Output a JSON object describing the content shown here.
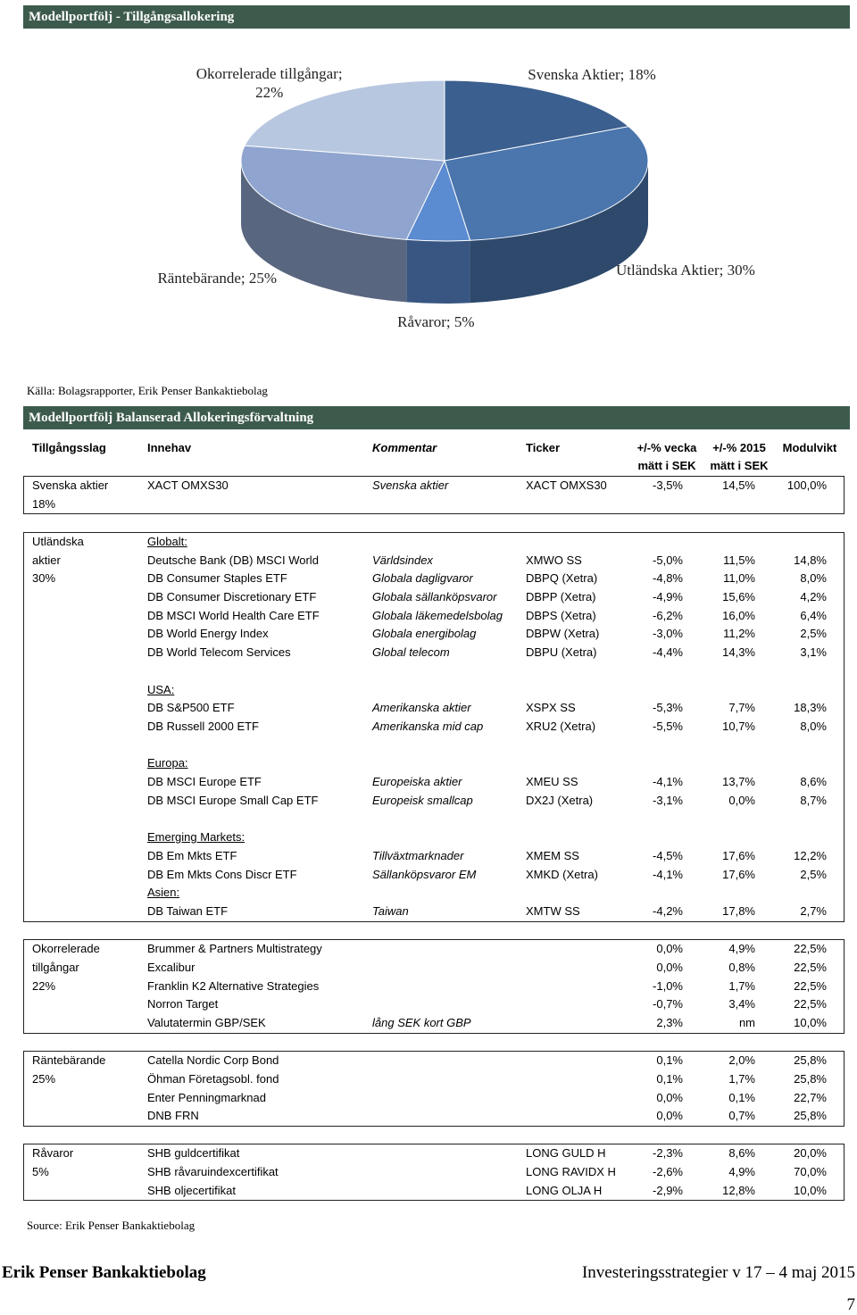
{
  "title": "Modellportfölj - Tillgångsallokering",
  "chart_data": {
    "type": "pie",
    "values": [
      18,
      30,
      5,
      25,
      22
    ],
    "value_labels": [
      "Svenska Aktier; 18%",
      "Utländska Aktier; 30%",
      "Råvaror; 5%",
      "Räntebärande; 25%",
      "Okorrelerade tillgångar; 22%"
    ],
    "colors": [
      "#3b5f8f",
      "#4a75ad",
      "#5b8bd0",
      "#8fa5cf",
      "#b8c7e0"
    ]
  },
  "chart_source": "Källa: Bolagsrapporter, Erik Penser Bankaktiebolag",
  "table_title": "Modellportfölj Balanserad Allokeringsförvaltning",
  "table": {
    "header": [
      "Tillgångsslag",
      "Innehav",
      "Kommentar",
      "Ticker",
      [
        "+/-% vecka",
        "mätt i SEK"
      ],
      [
        "+/-% 2015",
        "mätt i SEK"
      ],
      "Modulvikt"
    ],
    "groups": [
      {
        "rows": [
          [
            "Svenska aktier",
            "XACT OMXS30",
            "Svenska aktier",
            "XACT OMXS30",
            "-3,5%",
            "14,5%",
            "100,0%"
          ],
          [
            "18%",
            null,
            null,
            null,
            null,
            null,
            null
          ]
        ]
      },
      {
        "rows": [
          [
            "Utländska",
            "Globalt:",
            null,
            null,
            null,
            null,
            null
          ],
          [
            "aktier",
            "Deutsche Bank (DB) MSCI World",
            "Världsindex",
            "XMWO SS",
            "-5,0%",
            "11,5%",
            "14,8%"
          ],
          [
            "30%",
            "DB Consumer Staples ETF",
            "Globala dagligvaror",
            "DBPQ (Xetra)",
            "-4,8%",
            "11,0%",
            "8,0%"
          ],
          [
            null,
            "DB Consumer Discretionary ETF",
            "Globala sällanköpsvaror",
            "DBPP (Xetra)",
            "-4,9%",
            "15,6%",
            "4,2%"
          ],
          [
            null,
            "DB MSCI World Health Care ETF",
            "Globala läkemedelsbolag",
            "DBPS (Xetra)",
            "-6,2%",
            "16,0%",
            "6,4%"
          ],
          [
            null,
            "DB World Energy Index",
            "Globala energibolag",
            "DBPW (Xetra)",
            "-3,0%",
            "11,2%",
            "2,5%"
          ],
          [
            null,
            "DB World Telecom Services",
            "Global telecom",
            "DBPU (Xetra)",
            "-4,4%",
            "14,3%",
            "3,1%"
          ],
          null,
          [
            null,
            "USA:",
            null,
            null,
            null,
            null,
            null
          ],
          [
            null,
            "DB S&P500 ETF",
            "Amerikanska aktier",
            "XSPX SS",
            "-5,3%",
            "7,7%",
            "18,3%"
          ],
          [
            null,
            "DB Russell 2000 ETF",
            "Amerikanska mid cap",
            "XRU2 (Xetra)",
            "-5,5%",
            "10,7%",
            "8,0%"
          ],
          null,
          [
            null,
            "Europa:",
            null,
            null,
            null,
            null,
            null
          ],
          [
            null,
            "DB MSCI Europe ETF",
            "Europeiska aktier",
            "XMEU SS",
            "-4,1%",
            "13,7%",
            "8,6%"
          ],
          [
            null,
            "DB MSCI Europe Small Cap ETF",
            "Europeisk smallcap",
            "DX2J (Xetra)",
            "-3,1%",
            "0,0%",
            "8,7%"
          ],
          null,
          [
            null,
            "Emerging Markets:",
            null,
            null,
            null,
            null,
            null
          ],
          [
            null,
            "DB Em Mkts ETF",
            "Tillväxtmarknader",
            "XMEM SS",
            "-4,5%",
            "17,6%",
            "12,2%"
          ],
          [
            null,
            "DB Em Mkts Cons Discr ETF",
            "Sällanköpsvaror EM",
            "XMKD (Xetra)",
            "-4,1%",
            "17,6%",
            "2,5%"
          ],
          [
            null,
            "Asien:",
            null,
            null,
            null,
            null,
            null
          ],
          [
            null,
            "DB Taiwan ETF",
            "Taiwan",
            "XMTW SS",
            "-4,2%",
            "17,8%",
            "2,7%"
          ]
        ]
      },
      {
        "rows": [
          [
            "Okorrelerade",
            "Brummer & Partners Multistrategy",
            null,
            null,
            "0,0%",
            "4,9%",
            "22,5%"
          ],
          [
            "tillgångar",
            "Excalibur",
            null,
            null,
            "0,0%",
            "0,8%",
            "22,5%"
          ],
          [
            "22%",
            "Franklin K2 Alternative Strategies",
            null,
            null,
            "-1,0%",
            "1,7%",
            "22,5%"
          ],
          [
            null,
            "Norron Target",
            null,
            null,
            "-0,7%",
            "3,4%",
            "22,5%"
          ],
          [
            null,
            "Valutatermin GBP/SEK",
            "lång SEK kort GBP",
            null,
            "2,3%",
            "nm",
            "10,0%"
          ]
        ]
      },
      {
        "rows": [
          [
            "Räntebärande",
            "Catella Nordic Corp Bond",
            null,
            null,
            "0,1%",
            "2,0%",
            "25,8%"
          ],
          [
            "25%",
            "Öhman Företagsobl. fond",
            null,
            null,
            "0,1%",
            "1,7%",
            "25,8%"
          ],
          [
            null,
            "Enter Penningmarknad",
            null,
            null,
            "0,0%",
            "0,1%",
            "22,7%"
          ],
          [
            null,
            "DNB FRN",
            null,
            null,
            "0,0%",
            "0,7%",
            "25,8%"
          ]
        ]
      },
      {
        "rows": [
          [
            "Råvaror",
            "SHB guldcertifikat",
            null,
            "LONG GULD H",
            "-2,3%",
            "8,6%",
            "20,0%"
          ],
          [
            "5%",
            "SHB råvaruindexcertifikat",
            null,
            "LONG RAVIDX H",
            "-2,6%",
            "4,9%",
            "70,0%"
          ],
          [
            null,
            "SHB oljecertifikat",
            null,
            "LONG OLJA H",
            "-2,9%",
            "12,8%",
            "10,0%"
          ]
        ]
      }
    ]
  },
  "source": "Source: Erik Penser Bankaktiebolag",
  "footer": {
    "left": "Erik Penser Bankaktiebolag",
    "right": "Investeringsstrategier v 17 – 4 maj 2015",
    "page": "7"
  }
}
